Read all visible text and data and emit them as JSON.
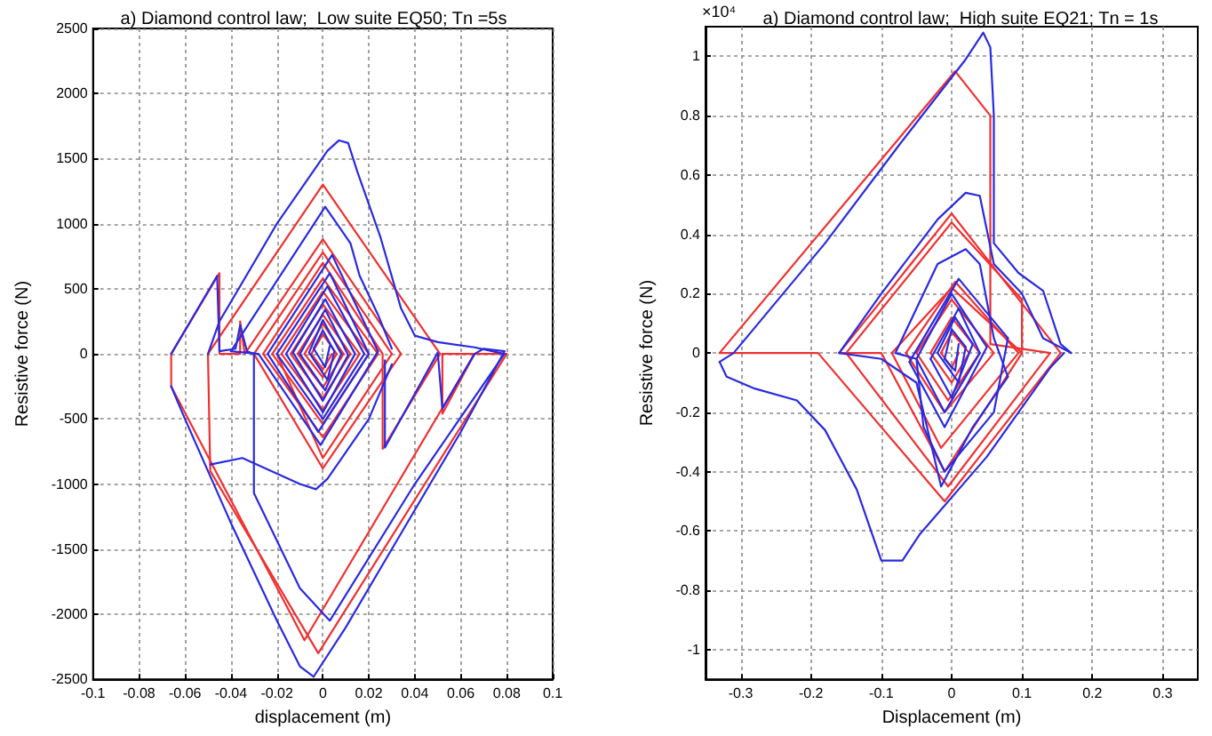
{
  "chart_data": [
    {
      "type": "line",
      "title": "a) Diamond control law;  Low suite EQ50; Tn =5s",
      "xlabel": "displacement (m)",
      "ylabel": "Resistive force (N)",
      "xlim": [
        -0.1,
        0.1
      ],
      "xticks": [
        -0.1,
        -0.08,
        -0.06,
        -0.04,
        -0.02,
        0,
        0.02,
        0.04,
        0.06,
        0.08,
        0.1
      ],
      "ylim": [
        -2500,
        2500
      ],
      "yticks": [
        -2500,
        -2000,
        -1500,
        -1000,
        -500,
        0,
        500,
        1000,
        1500,
        2000,
        2500
      ],
      "grid": true,
      "marker": "none",
      "line_style": "solid",
      "series": [
        {
          "color": "#f03030",
          "x": [
            -0.005,
            0,
            0.004
          ],
          "values": [
            0,
            -120,
            0
          ]
        },
        {
          "color": "#f03030",
          "x": [
            -0.005,
            0,
            0.006
          ],
          "values": [
            0,
            150,
            0
          ]
        },
        {
          "color": "#f03030",
          "x": [
            -0.008,
            0,
            0.006
          ],
          "values": [
            0,
            -180,
            0
          ]
        },
        {
          "color": "#f03030",
          "x": [
            -0.008,
            0,
            0.009
          ],
          "values": [
            0,
            230,
            0
          ]
        },
        {
          "color": "#f03030",
          "x": [
            -0.011,
            0,
            0.009
          ],
          "values": [
            0,
            -260,
            0
          ]
        },
        {
          "color": "#f03030",
          "x": [
            -0.011,
            0,
            0.012
          ],
          "values": [
            0,
            300,
            0
          ]
        },
        {
          "color": "#f03030",
          "x": [
            -0.014,
            0,
            0.012
          ],
          "values": [
            0,
            -340,
            0
          ]
        },
        {
          "color": "#f03030",
          "x": [
            -0.014,
            0,
            0.016
          ],
          "values": [
            0,
            380,
            0
          ]
        },
        {
          "color": "#f03030",
          "x": [
            -0.018,
            0,
            0.016
          ],
          "values": [
            0,
            -430,
            0
          ]
        },
        {
          "color": "#f03030",
          "x": [
            -0.018,
            0,
            0.02
          ],
          "values": [
            0,
            480,
            0
          ]
        },
        {
          "color": "#f03030",
          "x": [
            -0.022,
            0,
            0.02
          ],
          "values": [
            0,
            -540,
            0
          ]
        },
        {
          "color": "#f03030",
          "x": [
            -0.022,
            0,
            0.024
          ],
          "values": [
            0,
            580,
            0
          ]
        },
        {
          "color": "#f03030",
          "x": [
            -0.026,
            0,
            0.024
          ],
          "values": [
            0,
            -640,
            0
          ]
        },
        {
          "color": "#f03030",
          "x": [
            -0.026,
            0,
            0.026,
            0.026,
            0.051
          ],
          "values": [
            0,
            700,
            0,
            -730,
            0
          ]
        },
        {
          "color": "#f03030",
          "x": [
            -0.05,
            0,
            0.051
          ],
          "values": [
            0,
            1300,
            0
          ]
        },
        {
          "color": "#f03030",
          "x": [
            -0.05,
            -0.049,
            -0.002,
            0.08
          ],
          "values": [
            0,
            -900,
            -2300,
            0
          ]
        },
        {
          "color": "#f03030",
          "x": [
            0.052,
            0.08
          ],
          "values": [
            0,
            0
          ]
        },
        {
          "color": "#f03030",
          "x": [
            0.052,
            0.052,
            0.066
          ],
          "values": [
            0,
            -460,
            0
          ]
        },
        {
          "color": "#f03030",
          "x": [
            -0.066,
            -0.008,
            0.066
          ],
          "values": [
            -250,
            -2200,
            0
          ]
        },
        {
          "color": "#f03030",
          "x": [
            -0.066,
            -0.066,
            -0.045,
            -0.045,
            -0.036,
            -0.036,
            -0.034,
            0,
            0.034
          ],
          "values": [
            -250,
            0,
            620,
            0,
            0,
            250,
            0,
            880,
            0
          ]
        },
        {
          "color": "#f03030",
          "x": [
            -0.03,
            0,
            0.034
          ],
          "values": [
            0,
            -880,
            0
          ]
        },
        {
          "color": "#f03030",
          "x": [
            -0.03,
            0,
            0.03
          ],
          "values": [
            0,
            780,
            0
          ]
        },
        {
          "color": "#f03030",
          "x": [
            -0.02,
            0,
            0.03
          ],
          "values": [
            0,
            -800,
            0
          ]
        },
        {
          "color": "#2a2ae0",
          "x": [
            -0.004,
            0.001,
            0.003
          ],
          "values": [
            40,
            -100,
            60
          ]
        },
        {
          "color": "#2a2ae0",
          "x": [
            -0.004,
            0,
            0.005
          ],
          "values": [
            40,
            180,
            20
          ]
        },
        {
          "color": "#2a2ae0",
          "x": [
            -0.006,
            0.002,
            0.005
          ],
          "values": [
            10,
            -200,
            20
          ]
        },
        {
          "color": "#2a2ae0",
          "x": [
            -0.006,
            0,
            0.008
          ],
          "values": [
            10,
            260,
            0
          ]
        },
        {
          "color": "#2a2ae0",
          "x": [
            -0.01,
            0.001,
            0.008
          ],
          "values": [
            0,
            -280,
            0
          ]
        },
        {
          "color": "#2a2ae0",
          "x": [
            -0.01,
            0.001,
            0.011
          ],
          "values": [
            0,
            340,
            -10
          ]
        },
        {
          "color": "#2a2ae0",
          "x": [
            -0.013,
            0,
            0.011
          ],
          "values": [
            10,
            -360,
            -10
          ]
        },
        {
          "color": "#2a2ae0",
          "x": [
            -0.013,
            0.001,
            0.014
          ],
          "values": [
            10,
            420,
            0
          ]
        },
        {
          "color": "#2a2ae0",
          "x": [
            -0.016,
            0,
            0.014
          ],
          "values": [
            0,
            -450,
            0
          ]
        },
        {
          "color": "#2a2ae0",
          "x": [
            -0.016,
            0.002,
            0.018
          ],
          "values": [
            0,
            520,
            0
          ]
        },
        {
          "color": "#2a2ae0",
          "x": [
            -0.02,
            0,
            0.018
          ],
          "values": [
            0,
            -500,
            0
          ]
        },
        {
          "color": "#2a2ae0",
          "x": [
            -0.02,
            0.003,
            0.02
          ],
          "values": [
            0,
            620,
            0
          ]
        },
        {
          "color": "#2a2ae0",
          "x": [
            -0.024,
            -0.002,
            0.02
          ],
          "values": [
            0,
            -600,
            0
          ]
        },
        {
          "color": "#2a2ae0",
          "x": [
            -0.024,
            0.004,
            0.024
          ],
          "values": [
            0,
            760,
            20
          ]
        },
        {
          "color": "#2a2ae0",
          "x": [
            -0.04,
            -0.028,
            -0.001,
            0.024
          ],
          "values": [
            20,
            0,
            -700,
            20
          ]
        },
        {
          "color": "#2a2ae0",
          "x": [
            -0.04,
            0.001,
            0.012,
            0.016,
            0.024,
            0.03
          ],
          "values": [
            20,
            1130,
            850,
            600,
            300,
            40
          ]
        },
        {
          "color": "#2a2ae0",
          "x": [
            0.027,
            0.027,
            0.05,
            0.052,
            0.066,
            0.07,
            0.079
          ],
          "values": [
            -50,
            -720,
            10,
            -420,
            0,
            40,
            20
          ]
        },
        {
          "color": "#2a2ae0",
          "x": [
            -0.066,
            -0.06,
            -0.04,
            -0.02,
            -0.01,
            -0.004,
            0.01,
            0.03,
            0.06,
            0.079
          ],
          "values": [
            -250,
            -500,
            -1300,
            -2050,
            -2400,
            -2480,
            -2100,
            -1500,
            -600,
            20
          ]
        },
        {
          "color": "#2a2ae0",
          "x": [
            -0.066,
            -0.046,
            -0.045,
            -0.038,
            -0.036,
            -0.033,
            -0.03,
            -0.03,
            -0.01,
            0.003,
            0.04,
            0.079
          ],
          "values": [
            0,
            600,
            20,
            40,
            220,
            20,
            0,
            -1070,
            -1800,
            -2050,
            -1000,
            0
          ]
        },
        {
          "color": "#2a2ae0",
          "x": [
            -0.05,
            -0.045,
            -0.02,
            0.002,
            0.007,
            0.011,
            0.015,
            0.025,
            0.034,
            0.04,
            0.05,
            0.066,
            0.079
          ],
          "values": [
            0,
            250,
            1000,
            1560,
            1640,
            1620,
            1400,
            900,
            350,
            140,
            90,
            50,
            0
          ]
        },
        {
          "color": "#2a2ae0",
          "x": [
            -0.049,
            -0.035,
            -0.01,
            -0.003,
            0.002,
            0.02,
            0.03
          ],
          "values": [
            -850,
            -800,
            -1000,
            -1040,
            -960,
            -500,
            -80
          ]
        }
      ]
    },
    {
      "type": "line",
      "title": "a) Diamond control law;  High suite EQ21; Tn = 1s",
      "xlabel": "Displacement (m)",
      "ylabel": "Resistive force (N)",
      "annotations": [
        "×10⁴"
      ],
      "xlim": [
        -0.35,
        0.35
      ],
      "xticks": [
        -0.3,
        -0.2,
        -0.1,
        0,
        0.1,
        0.2,
        0.3
      ],
      "ylim": [
        -1.1,
        1.1
      ],
      "yticks": [
        -1,
        -0.8,
        -0.6,
        -0.4,
        -0.2,
        0,
        0.2,
        0.4,
        0.6,
        0.8,
        1
      ],
      "grid": true,
      "marker": "none",
      "line_style": "solid",
      "series": [
        {
          "color": "#f03030",
          "x": [
            -0.015,
            0,
            0.01
          ],
          "values": [
            0,
            -0.05,
            0
          ]
        },
        {
          "color": "#f03030",
          "x": [
            -0.015,
            0,
            0.025
          ],
          "values": [
            0,
            0.07,
            0
          ]
        },
        {
          "color": "#f03030",
          "x": [
            -0.03,
            0,
            0.025
          ],
          "values": [
            0,
            -0.1,
            0
          ]
        },
        {
          "color": "#f03030",
          "x": [
            -0.03,
            0,
            0.04
          ],
          "values": [
            0,
            0.12,
            0
          ]
        },
        {
          "color": "#f03030",
          "x": [
            -0.05,
            -0.005,
            0.04
          ],
          "values": [
            0,
            -0.16,
            0
          ]
        },
        {
          "color": "#f03030",
          "x": [
            -0.05,
            0,
            0.06
          ],
          "values": [
            0,
            0.18,
            0
          ]
        },
        {
          "color": "#f03030",
          "x": [
            -0.065,
            -0.01,
            0.06
          ],
          "values": [
            0,
            -0.2,
            0
          ]
        },
        {
          "color": "#f03030",
          "x": [
            -0.065,
            0.005,
            0.095
          ],
          "values": [
            0,
            0.24,
            0
          ]
        },
        {
          "color": "#f03030",
          "x": [
            -0.085,
            -0.015,
            0.095
          ],
          "values": [
            0,
            -0.32,
            0
          ]
        },
        {
          "color": "#f03030",
          "x": [
            -0.085,
            0,
            0.1
          ],
          "values": [
            0,
            0.22,
            0
          ]
        },
        {
          "color": "#f03030",
          "x": [
            -0.16,
            -0.1,
            -0.01,
            0.1
          ],
          "values": [
            0,
            0,
            -0.4,
            0
          ]
        },
        {
          "color": "#f03030",
          "x": [
            -0.16,
            0,
            0.155
          ],
          "values": [
            0,
            0.47,
            0
          ]
        },
        {
          "color": "#f03030",
          "x": [
            -0.33,
            -0.19,
            -0.01,
            0.155
          ],
          "values": [
            0,
            0,
            -0.5,
            0
          ]
        },
        {
          "color": "#f03030",
          "x": [
            -0.33,
            0.005,
            0.055,
            0.055,
            0.14
          ],
          "values": [
            0,
            0.95,
            0.8,
            0.03,
            0
          ]
        },
        {
          "color": "#f03030",
          "x": [
            -0.15,
            -0.005,
            0.14
          ],
          "values": [
            0,
            -0.45,
            0
          ]
        },
        {
          "color": "#f03030",
          "x": [
            -0.15,
            0,
            0.1,
            0.1
          ],
          "values": [
            0,
            0.44,
            0.18,
            0
          ]
        },
        {
          "color": "#2a2ae0",
          "x": [
            -0.01,
            0.005,
            0.01
          ],
          "values": [
            -0.02,
            -0.06,
            0.03
          ]
        },
        {
          "color": "#2a2ae0",
          "x": [
            -0.01,
            0,
            0.02
          ],
          "values": [
            -0.02,
            0.08,
            0.02
          ]
        },
        {
          "color": "#2a2ae0",
          "x": [
            -0.02,
            0.01,
            0.02
          ],
          "values": [
            0,
            -0.1,
            0.02
          ]
        },
        {
          "color": "#2a2ae0",
          "x": [
            -0.02,
            0.005,
            0.03
          ],
          "values": [
            0,
            0.12,
            0.03
          ]
        },
        {
          "color": "#2a2ae0",
          "x": [
            -0.03,
            0,
            0.03
          ],
          "values": [
            -0.02,
            -0.15,
            0.03
          ]
        },
        {
          "color": "#2a2ae0",
          "x": [
            -0.03,
            0.01,
            0.04
          ],
          "values": [
            -0.02,
            0.15,
            0
          ]
        },
        {
          "color": "#2a2ae0",
          "x": [
            -0.05,
            -0.01,
            0.04
          ],
          "values": [
            -0.02,
            -0.2,
            0
          ]
        },
        {
          "color": "#2a2ae0",
          "x": [
            -0.05,
            0,
            0.05
          ],
          "values": [
            -0.02,
            0.2,
            0.02
          ]
        },
        {
          "color": "#2a2ae0",
          "x": [
            -0.06,
            -0.01,
            0.05
          ],
          "values": [
            -0.03,
            -0.25,
            0.02
          ]
        },
        {
          "color": "#2a2ae0",
          "x": [
            -0.06,
            0.01,
            0.08
          ],
          "values": [
            -0.03,
            0.25,
            0.05
          ]
        },
        {
          "color": "#2a2ae0",
          "x": [
            -0.08,
            -0.05,
            -0.04,
            -0.01,
            0.06,
            0.08
          ],
          "values": [
            0,
            -0.02,
            -0.25,
            -0.4,
            -0.2,
            0.05
          ]
        },
        {
          "color": "#2a2ae0",
          "x": [
            -0.08,
            -0.02,
            0.02,
            0.04,
            0.06,
            0.08
          ],
          "values": [
            0,
            0.3,
            0.35,
            0.3,
            0.05,
            -0.08
          ]
        },
        {
          "color": "#2a2ae0",
          "x": [
            -0.16,
            -0.1,
            -0.05,
            -0.03,
            -0.015,
            0.03,
            0.08
          ],
          "values": [
            0,
            -0.02,
            -0.1,
            -0.3,
            -0.45,
            -0.25,
            -0.08
          ]
        },
        {
          "color": "#2a2ae0",
          "x": [
            -0.16,
            -0.1,
            -0.02,
            0.02,
            0.04,
            0.06,
            0.1,
            0.13,
            0.17
          ],
          "values": [
            0,
            0.2,
            0.45,
            0.54,
            0.53,
            0.3,
            0.2,
            0.05,
            0
          ]
        },
        {
          "color": "#2a2ae0",
          "x": [
            -0.33,
            -0.31,
            -0.18,
            -0.075,
            0.02,
            0.045,
            0.055,
            0.06,
            0.06,
            0.095,
            0.13,
            0.155,
            0.17
          ],
          "values": [
            -0.03,
            0,
            0.37,
            0.7,
            0.99,
            1.08,
            1.03,
            0.8,
            0.37,
            0.27,
            0.21,
            0.03,
            0
          ]
        },
        {
          "color": "#2a2ae0",
          "x": [
            -0.33,
            -0.32,
            -0.28,
            -0.22,
            -0.18,
            -0.135,
            -0.1,
            -0.07,
            -0.045,
            0.05,
            0.14,
            0.16
          ],
          "values": [
            -0.03,
            -0.08,
            -0.12,
            -0.16,
            -0.26,
            -0.46,
            -0.7,
            -0.7,
            -0.61,
            -0.35,
            -0.05,
            0
          ]
        }
      ]
    }
  ]
}
